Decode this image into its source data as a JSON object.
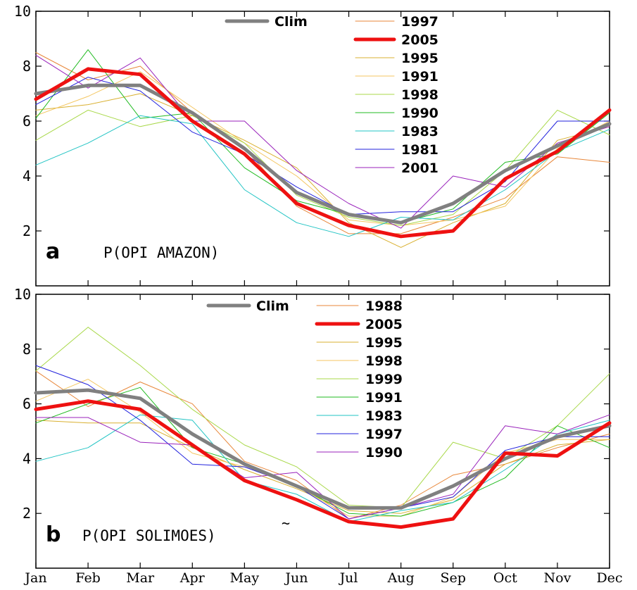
{
  "chart_data": [
    {
      "type": "line",
      "panel_letter": "a",
      "title": "P(OPI AMAZON)",
      "categories": [
        "Jan",
        "Feb",
        "Mar",
        "Apr",
        "May",
        "Jun",
        "Jul",
        "Aug",
        "Sep",
        "Oct",
        "Nov",
        "Dec"
      ],
      "ylim": [
        0,
        10
      ],
      "yticks": [
        2,
        4,
        6,
        8,
        10
      ],
      "grid": false,
      "series": [
        {
          "name": "1997",
          "color": "#e8873a",
          "width": 1,
          "values": [
            8.5,
            7.5,
            8.0,
            6.3,
            5.0,
            2.9,
            1.9,
            1.9,
            2.5,
            3.2,
            4.7,
            4.5
          ]
        },
        {
          "name": "1995",
          "color": "#d9b030",
          "width": 1,
          "values": [
            6.4,
            6.6,
            7.0,
            6.2,
            5.3,
            4.3,
            2.3,
            1.4,
            2.3,
            3.0,
            5.3,
            5.8
          ]
        },
        {
          "name": "1991",
          "color": "#f4c660",
          "width": 1,
          "values": [
            6.2,
            6.9,
            7.8,
            6.5,
            5.2,
            4.0,
            2.4,
            2.2,
            2.4,
            2.9,
            5.0,
            6.0
          ]
        },
        {
          "name": "1998",
          "color": "#a8d848",
          "width": 1,
          "values": [
            5.3,
            6.4,
            5.8,
            6.2,
            5.2,
            3.3,
            2.5,
            2.2,
            2.6,
            4.2,
            6.4,
            5.5
          ]
        },
        {
          "name": "1990",
          "color": "#22bb22",
          "width": 1,
          "values": [
            6.1,
            8.6,
            6.1,
            6.3,
            4.3,
            3.1,
            2.6,
            2.3,
            2.8,
            4.5,
            4.8,
            6.3
          ]
        },
        {
          "name": "1983",
          "color": "#22c4c4",
          "width": 1,
          "values": [
            4.4,
            5.2,
            6.2,
            5.9,
            3.5,
            2.3,
            1.8,
            2.5,
            2.4,
            3.5,
            4.9,
            5.7
          ]
        },
        {
          "name": "1981",
          "color": "#2222dd",
          "width": 1,
          "values": [
            6.6,
            7.6,
            7.1,
            5.6,
            4.8,
            3.6,
            2.6,
            2.7,
            2.7,
            3.8,
            6.0,
            6.0
          ]
        },
        {
          "name": "2001",
          "color": "#9922bb",
          "width": 1,
          "values": [
            8.4,
            7.2,
            8.3,
            6.0,
            6.0,
            4.2,
            3.0,
            2.1,
            4.0,
            3.6,
            5.2,
            5.8
          ]
        },
        {
          "name": "Clim",
          "color": "#808080",
          "width": 5,
          "values": [
            7.0,
            7.3,
            7.3,
            6.3,
            5.0,
            3.4,
            2.6,
            2.3,
            3.0,
            4.2,
            5.1,
            5.9
          ]
        },
        {
          "name": "2005",
          "color": "#ee1111",
          "width": 5,
          "values": [
            6.8,
            7.9,
            7.7,
            6.0,
            4.8,
            3.0,
            2.2,
            1.8,
            2.0,
            3.9,
            4.9,
            6.4
          ]
        }
      ],
      "legend_left": [
        "Clim"
      ],
      "legend_right": [
        "1997",
        "2005",
        "1995",
        "1991",
        "1998",
        "1990",
        "1983",
        "1981",
        "2001"
      ]
    },
    {
      "type": "line",
      "panel_letter": "b",
      "title": "P(OPI SOLIMOES)",
      "extra_text": "~",
      "categories": [
        "Jan",
        "Feb",
        "Mar",
        "Apr",
        "May",
        "Jun",
        "Jul",
        "Aug",
        "Sep",
        "Oct",
        "Nov",
        "Dec"
      ],
      "ylim": [
        0,
        10
      ],
      "yticks": [
        2,
        4,
        6,
        8,
        10
      ],
      "grid": false,
      "series": [
        {
          "name": "1988",
          "color": "#e8873a",
          "width": 1,
          "values": [
            7.2,
            5.9,
            6.8,
            6.0,
            3.9,
            3.2,
            1.8,
            2.3,
            3.4,
            3.8,
            4.4,
            4.9
          ]
        },
        {
          "name": "1995",
          "color": "#d9b030",
          "width": 1,
          "values": [
            5.4,
            5.3,
            5.3,
            4.4,
            3.6,
            2.9,
            2.1,
            2.0,
            2.5,
            3.8,
            4.5,
            4.7
          ]
        },
        {
          "name": "1998",
          "color": "#f4c660",
          "width": 1,
          "values": [
            6.1,
            6.9,
            5.7,
            4.2,
            3.7,
            3.0,
            1.9,
            1.9,
            2.6,
            4.2,
            4.7,
            4.7
          ]
        },
        {
          "name": "1999",
          "color": "#a8d848",
          "width": 1,
          "values": [
            7.2,
            8.8,
            7.4,
            5.8,
            4.5,
            3.7,
            2.3,
            2.2,
            4.6,
            4.0,
            5.2,
            7.1
          ]
        },
        {
          "name": "1991",
          "color": "#22bb22",
          "width": 1,
          "values": [
            5.3,
            6.0,
            6.6,
            4.4,
            3.8,
            3.0,
            2.0,
            1.9,
            2.4,
            3.3,
            5.2,
            4.4
          ]
        },
        {
          "name": "1983",
          "color": "#22c4c4",
          "width": 1,
          "values": [
            3.9,
            4.4,
            5.6,
            5.4,
            3.2,
            2.7,
            1.7,
            2.1,
            2.4,
            3.6,
            4.9,
            5.4
          ]
        },
        {
          "name": "1997",
          "color": "#2222dd",
          "width": 1,
          "values": [
            7.4,
            6.7,
            5.4,
            3.8,
            3.7,
            3.0,
            1.8,
            2.2,
            2.6,
            4.3,
            4.8,
            4.8
          ]
        },
        {
          "name": "1990",
          "color": "#9922bb",
          "width": 1,
          "values": [
            5.5,
            5.5,
            4.6,
            4.5,
            3.3,
            3.5,
            1.8,
            2.2,
            2.7,
            5.2,
            4.9,
            5.6
          ]
        },
        {
          "name": "Clim",
          "color": "#808080",
          "width": 5,
          "values": [
            6.4,
            6.5,
            6.2,
            4.9,
            3.8,
            3.0,
            2.2,
            2.2,
            3.0,
            4.0,
            4.8,
            5.2
          ]
        },
        {
          "name": "2005",
          "color": "#ee1111",
          "width": 5,
          "values": [
            5.8,
            6.1,
            5.8,
            4.5,
            3.2,
            2.5,
            1.7,
            1.5,
            1.8,
            4.2,
            4.1,
            5.3
          ]
        }
      ],
      "legend_left": [
        "Clim"
      ],
      "legend_right": [
        "1988",
        "2005",
        "1995",
        "1998",
        "1999",
        "1991",
        "1983",
        "1997",
        "1990"
      ]
    }
  ]
}
